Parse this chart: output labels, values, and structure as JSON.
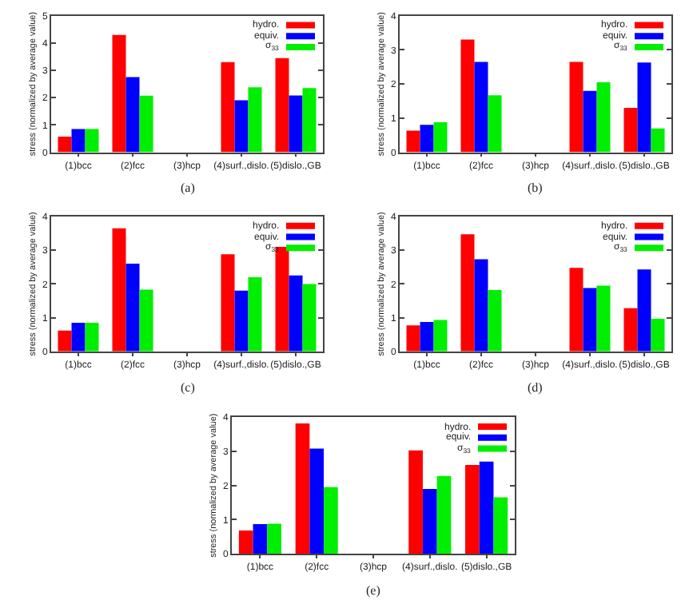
{
  "chart_data": [
    {
      "type": "bar",
      "categories": [
        "(1)bcc",
        "(2)fcc",
        "(3)hcp",
        "(4)surf.,dislo.",
        "(5)dislo.,GB"
      ],
      "ylabel": "stress (normalized by average value)",
      "ylim": [
        0,
        5
      ],
      "yticks": [
        0,
        1,
        2,
        3,
        4,
        5
      ],
      "legend": "top right",
      "annotations": [
        "(a)"
      ],
      "series": [
        {
          "name": "hydro.",
          "color": "#ff0000",
          "values": [
            0.57,
            4.3,
            null,
            3.3,
            3.45
          ]
        },
        {
          "name": "equiv.",
          "color": "#0000ff",
          "values": [
            0.85,
            2.75,
            null,
            1.9,
            2.08
          ]
        },
        {
          "name": "σ$_{33}$",
          "color": "#00ee00",
          "values": [
            0.85,
            2.07,
            null,
            2.38,
            2.35
          ]
        }
      ]
    },
    {
      "type": "bar",
      "categories": [
        "(1)bcc",
        "(2)fcc",
        "(3)hcp",
        "(4)surf.,dislo.",
        "(5)dislo.,GB"
      ],
      "ylabel": "stress (normalized by average value)",
      "ylim": [
        0,
        4
      ],
      "yticks": [
        0,
        1,
        2,
        3,
        4
      ],
      "legend": "top right",
      "annotations": [
        "(b)"
      ],
      "series": [
        {
          "name": "hydro.",
          "color": "#ff0000",
          "values": [
            0.63,
            3.3,
            null,
            2.65,
            1.3
          ]
        },
        {
          "name": "equiv.",
          "color": "#0000ff",
          "values": [
            0.8,
            2.65,
            null,
            1.8,
            2.63
          ]
        },
        {
          "name": "σ$_{33}$",
          "color": "#00ee00",
          "values": [
            0.88,
            1.67,
            null,
            2.05,
            0.7
          ]
        }
      ]
    },
    {
      "type": "bar",
      "categories": [
        "(1)bcc",
        "(2)fcc",
        "(3)hcp",
        "(4)surf.,dislo.",
        "(5)dislo.,GB"
      ],
      "ylabel": "stress (normalized by average value)",
      "ylim": [
        0,
        4
      ],
      "yticks": [
        0,
        1,
        2,
        3,
        4
      ],
      "legend": "top right",
      "annotations": [
        "(c)"
      ],
      "series": [
        {
          "name": "hydro.",
          "color": "#ff0000",
          "values": [
            0.62,
            3.65,
            null,
            2.88,
            3.1
          ]
        },
        {
          "name": "equiv.",
          "color": "#0000ff",
          "values": [
            0.85,
            2.6,
            null,
            1.8,
            2.25
          ]
        },
        {
          "name": "σ$_{33}$",
          "color": "#00ee00",
          "values": [
            0.85,
            1.83,
            null,
            2.2,
            2.0
          ]
        }
      ]
    },
    {
      "type": "bar",
      "categories": [
        "(1)bcc",
        "(2)fcc",
        "(3)hcp",
        "(4)surf.,dislo.",
        "(5)dislo.,GB"
      ],
      "ylabel": "stress (normalized by average value)",
      "ylim": [
        0,
        4
      ],
      "yticks": [
        0,
        1,
        2,
        3,
        4
      ],
      "legend": "top right",
      "annotations": [
        "(d)"
      ],
      "series": [
        {
          "name": "hydro.",
          "color": "#ff0000",
          "values": [
            0.77,
            3.47,
            null,
            2.48,
            1.28
          ]
        },
        {
          "name": "equiv.",
          "color": "#0000ff",
          "values": [
            0.87,
            2.73,
            null,
            1.88,
            2.43
          ]
        },
        {
          "name": "σ$_{33}$",
          "color": "#00ee00",
          "values": [
            0.93,
            1.82,
            null,
            1.95,
            0.97
          ]
        }
      ]
    },
    {
      "type": "bar",
      "categories": [
        "(1)bcc",
        "(2)fcc",
        "(3)hcp",
        "(4)surf.,dislo.",
        "(5)dislo.,GB"
      ],
      "ylabel": "stress (normalized by average value)",
      "ylim": [
        0,
        4
      ],
      "yticks": [
        0,
        1,
        2,
        3,
        4
      ],
      "legend": "top right",
      "annotations": [
        "(e)"
      ],
      "series": [
        {
          "name": "hydro.",
          "color": "#ff0000",
          "values": [
            0.68,
            3.82,
            null,
            3.03,
            2.6
          ]
        },
        {
          "name": "equiv.",
          "color": "#0000ff",
          "values": [
            0.87,
            3.08,
            null,
            1.9,
            2.7
          ]
        },
        {
          "name": "σ$_{33}$",
          "color": "#00ee00",
          "values": [
            0.88,
            1.95,
            null,
            2.28,
            1.65
          ]
        }
      ]
    }
  ]
}
